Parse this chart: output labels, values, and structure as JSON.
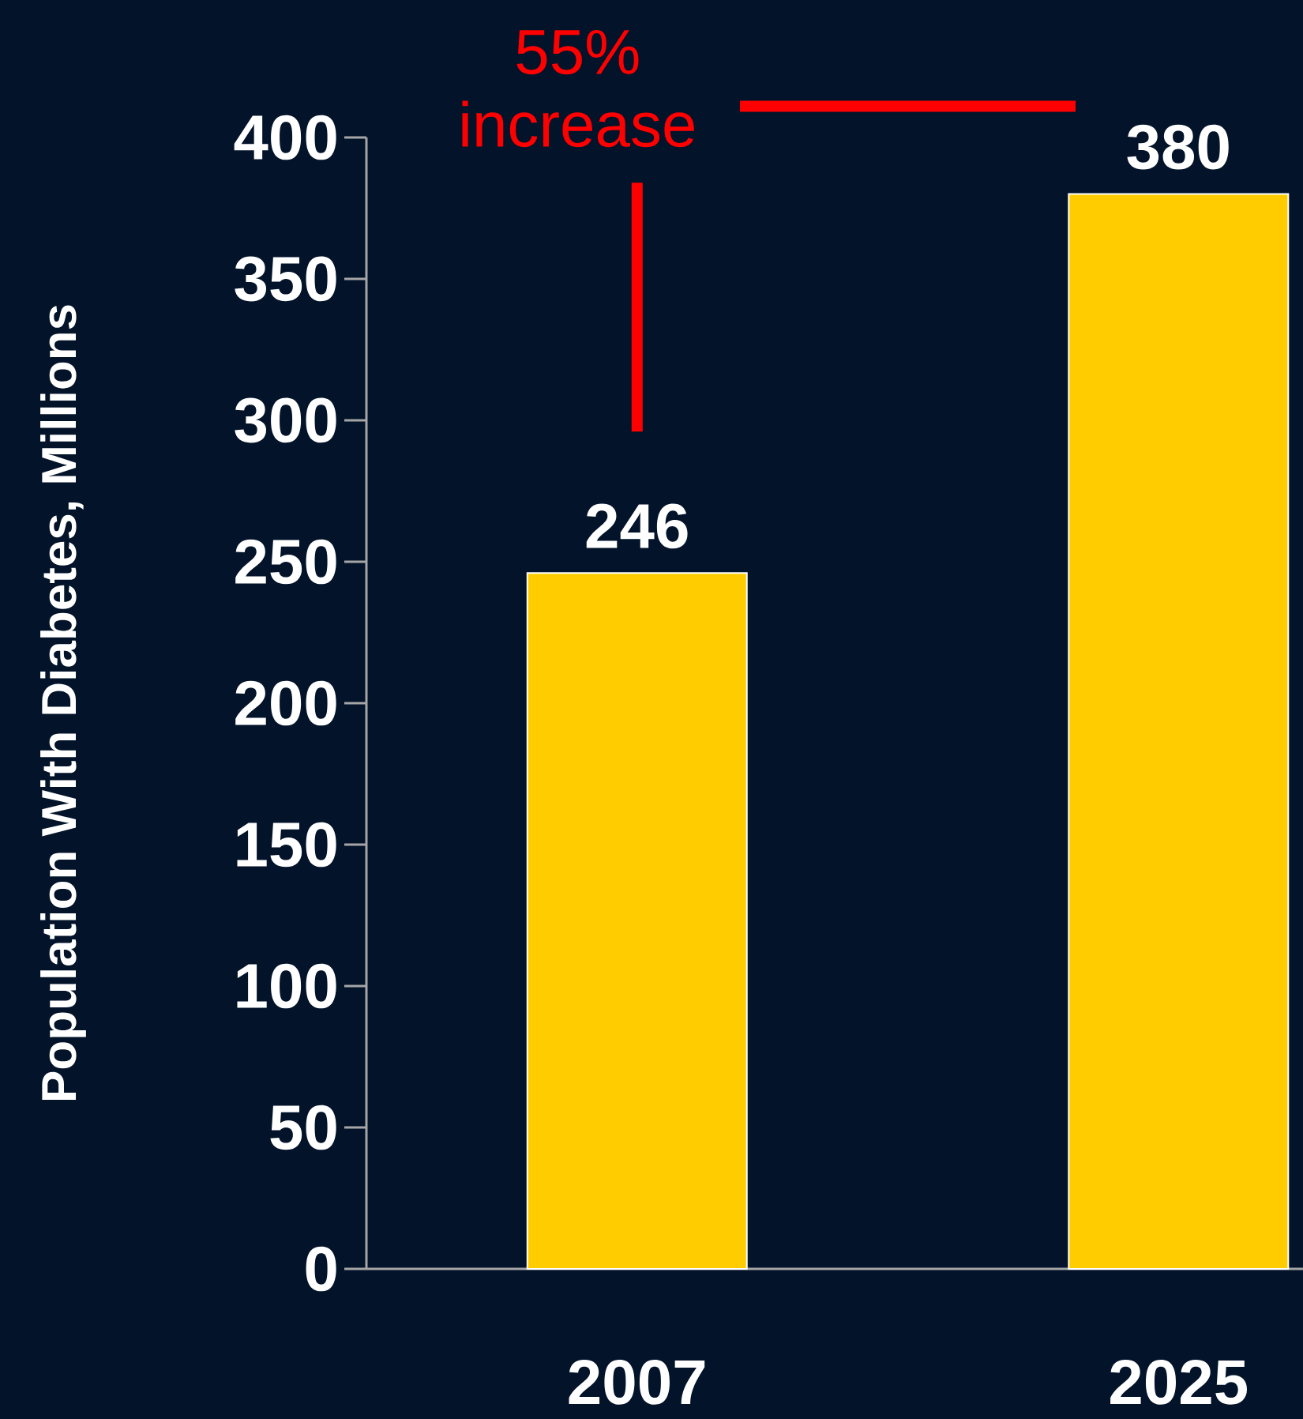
{
  "chart_data": {
    "type": "bar",
    "ylabel": "Population With Diabetes, Millions",
    "categories": [
      "2007",
      "2025"
    ],
    "values": [
      246,
      380
    ],
    "color": "#ffcc00",
    "ylim": [
      0,
      400
    ],
    "yticks": [
      0,
      50,
      100,
      150,
      200,
      250,
      300,
      350,
      400
    ],
    "data_labels": true,
    "annotations": [
      "55% increase"
    ]
  }
}
